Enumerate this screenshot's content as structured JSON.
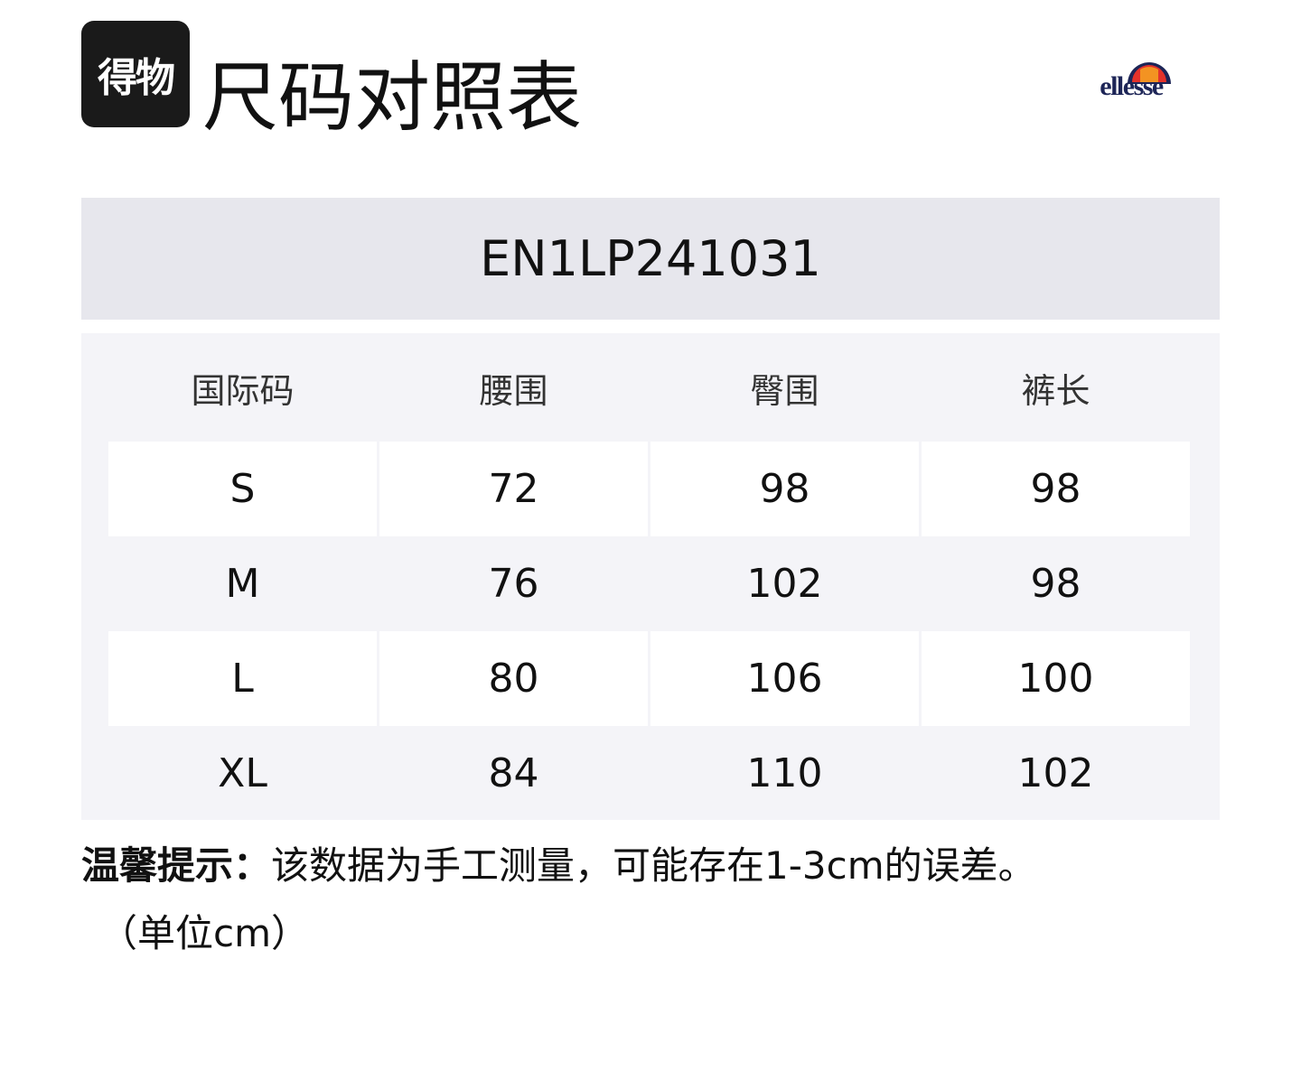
{
  "header": {
    "app_logo_text": "得物",
    "title": "尺码对照表",
    "brand": "ellesse",
    "brand_colors": {
      "navy": "#1d2557",
      "orange": "#f39322",
      "red": "#e4322b"
    }
  },
  "product_code": "EN1LP241031",
  "table": {
    "columns": [
      "国际码",
      "腰围",
      "臀围",
      "裤长"
    ],
    "rows": [
      [
        "S",
        "72",
        "98",
        "98"
      ],
      [
        "M",
        "76",
        "102",
        "98"
      ],
      [
        "L",
        "80",
        "106",
        "100"
      ],
      [
        "XL",
        "84",
        "110",
        "102"
      ]
    ]
  },
  "note": {
    "label": "温馨提示：",
    "text": "该数据为手工测量，可能存在1-3cm的误差。",
    "unit": "（单位cm）"
  }
}
